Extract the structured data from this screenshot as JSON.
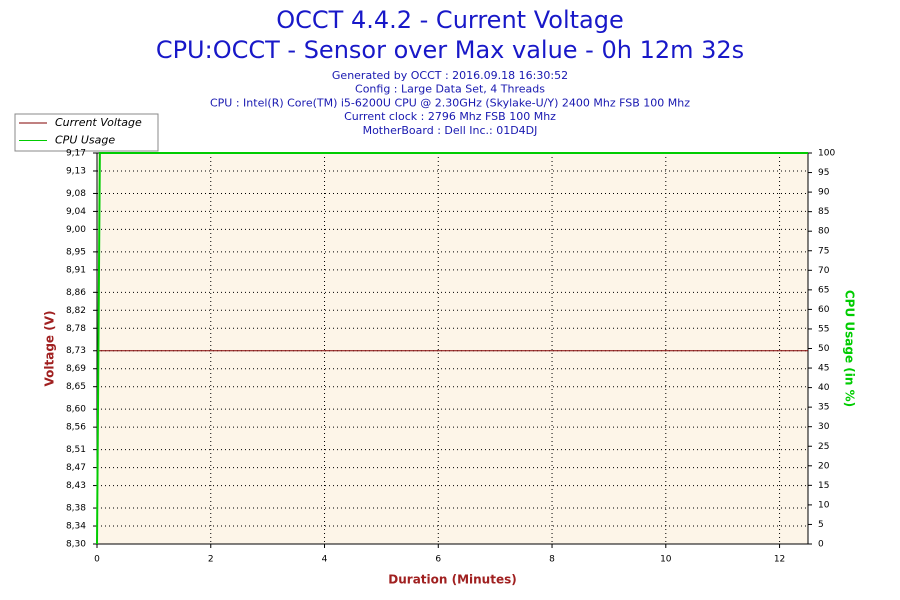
{
  "chart_data": {
    "type": "line",
    "title": "OCCT 4.4.2 - Current Voltage",
    "subtitle": "CPU:OCCT - Sensor over Max value - 0h 12m 32s",
    "info": [
      "Generated by OCCT : 2016.09.18 16:30:52",
      "Config : Large Data Set, 4 Threads",
      "CPU : Intel(R) Core(TM) i5-6200U CPU @ 2.30GHz (Skylake-U/Y) 2400 Mhz FSB 100 Mhz",
      "Current clock : 2796 Mhz FSB 100 Mhz",
      "MotherBoard : Dell Inc.: 01D4DJ"
    ],
    "xlabel": "Duration (Minutes)",
    "ylabel": "Voltage (V)",
    "y2label": "CPU Usage (in %)",
    "x": [
      0,
      0.05,
      12.5
    ],
    "series": [
      {
        "name": "Current Voltage",
        "color": "#800000",
        "values": [
          8.73,
          8.73,
          8.73
        ]
      },
      {
        "name": "CPU Usage",
        "color": "#00cc00",
        "axis": "y2",
        "values": [
          0,
          100,
          100
        ]
      }
    ],
    "xlim": [
      0,
      12.5
    ],
    "xticks": [
      0,
      2,
      4,
      6,
      8,
      10,
      12
    ],
    "ylim": [
      8.3,
      9.17
    ],
    "yticks": [
      {
        "value": 8.3,
        "label": "8,30"
      },
      {
        "value": 8.34,
        "label": "8,34"
      },
      {
        "value": 8.38,
        "label": "8,38"
      },
      {
        "value": 8.43,
        "label": "8,43"
      },
      {
        "value": 8.47,
        "label": "8,47"
      },
      {
        "value": 8.51,
        "label": "8,51"
      },
      {
        "value": 8.56,
        "label": "8,56"
      },
      {
        "value": 8.6,
        "label": "8,60"
      },
      {
        "value": 8.65,
        "label": "8,65"
      },
      {
        "value": 8.69,
        "label": "8,69"
      },
      {
        "value": 8.73,
        "label": "8,73"
      },
      {
        "value": 8.78,
        "label": "8,78"
      },
      {
        "value": 8.82,
        "label": "8,82"
      },
      {
        "value": 8.86,
        "label": "8,86"
      },
      {
        "value": 8.91,
        "label": "8,91"
      },
      {
        "value": 8.95,
        "label": "8,95"
      },
      {
        "value": 9.0,
        "label": "9,00"
      },
      {
        "value": 9.04,
        "label": "9,04"
      },
      {
        "value": 9.08,
        "label": "9,08"
      },
      {
        "value": 9.13,
        "label": "9,13"
      },
      {
        "value": 9.17,
        "label": "9,17"
      }
    ],
    "y2lim": [
      0,
      100
    ],
    "y2ticks": [
      0,
      5,
      10,
      15,
      20,
      25,
      30,
      35,
      40,
      45,
      50,
      55,
      60,
      65,
      70,
      75,
      80,
      85,
      90,
      95,
      100
    ],
    "grid": true,
    "legend": "top-left"
  }
}
